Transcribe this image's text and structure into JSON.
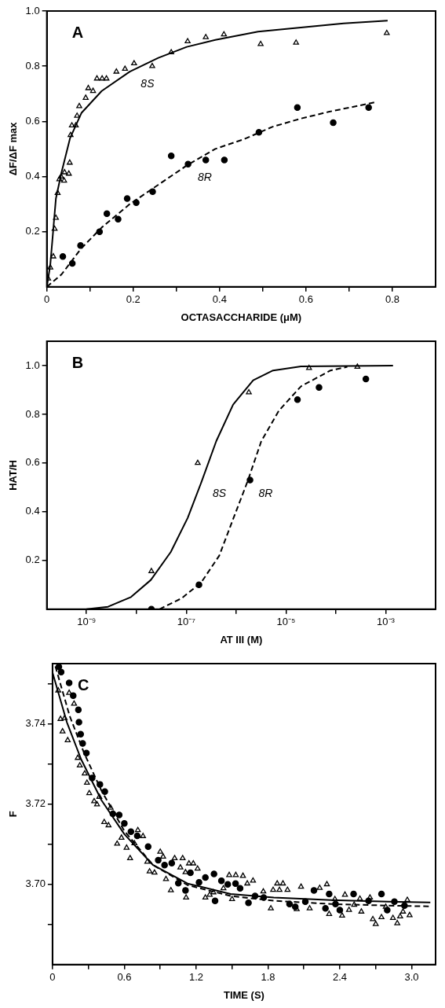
{
  "chart_data": [
    {
      "type": "scatter",
      "xlabel": "OCTASACCHARIDE (μM)",
      "ylabel": "ΔF/ΔF max",
      "xlim": [
        0,
        0.9
      ],
      "ylim": [
        0,
        1.0
      ],
      "xticks": [
        0,
        {
          "value": 0.1,
          "label": null
        },
        0.2,
        {
          "value": 0.3,
          "label": null
        },
        0.4,
        {
          "value": 0.5,
          "label": null
        },
        0.6,
        {
          "value": 0.7,
          "label": null
        },
        0.8
      ],
      "yticks": [
        0.2,
        0.4,
        0.6,
        0.8,
        {
          "value": 1.0,
          "label": "1.0"
        }
      ],
      "grid": false,
      "annotations": [
        "A"
      ],
      "series": [
        {
          "type": "scatter",
          "marker": "triangle",
          "color": "#000000",
          "x": [
            0.003,
            0.008,
            0.015,
            0.018,
            0.021,
            0.025,
            0.029,
            0.033,
            0.04,
            0.041,
            0.051,
            0.053,
            0.055,
            0.058,
            0.067,
            0.07,
            0.075,
            0.09,
            0.096,
            0.107,
            0.116,
            0.128,
            0.138,
            0.161,
            0.181,
            0.202,
            0.244,
            0.288,
            0.326,
            0.368,
            0.41,
            0.495,
            0.577,
            0.787
          ],
          "values": [
            0.03,
            0.07,
            0.11,
            0.21,
            0.25,
            0.34,
            0.39,
            0.4,
            0.385,
            0.415,
            0.41,
            0.45,
            0.55,
            0.585,
            0.585,
            0.62,
            0.655,
            0.685,
            0.72,
            0.71,
            0.755,
            0.755,
            0.755,
            0.78,
            0.79,
            0.81,
            0.8,
            0.85,
            0.89,
            0.905,
            0.915,
            0.88,
            0.885,
            0.92
          ]
        },
        {
          "type": "scatter",
          "marker": "circle",
          "color": "#000000",
          "x": [
            0.037,
            0.059,
            0.078,
            0.122,
            0.139,
            0.165,
            0.186,
            0.207,
            0.245,
            0.288,
            0.327,
            0.368,
            0.411,
            0.491,
            0.58,
            0.663,
            0.745
          ],
          "values": [
            0.11,
            0.085,
            0.15,
            0.2,
            0.265,
            0.245,
            0.32,
            0.305,
            0.345,
            0.475,
            0.445,
            0.46,
            0.46,
            0.56,
            0.65,
            0.595,
            0.65
          ]
        },
        {
          "type": "line",
          "name": "8S",
          "marker": "none",
          "line_style": "solid",
          "color": "#000000",
          "x": [
            0,
            0.008,
            0.021,
            0.034,
            0.054,
            0.08,
            0.127,
            0.192,
            0.258,
            0.324,
            0.39,
            0.489,
            0.588,
            0.687,
            0.789
          ],
          "values": [
            0,
            0.08,
            0.32,
            0.415,
            0.54,
            0.63,
            0.71,
            0.78,
            0.83,
            0.87,
            0.895,
            0.925,
            0.94,
            0.955,
            0.965
          ]
        },
        {
          "type": "line",
          "name": "8R",
          "marker": "none",
          "line_style": "dashed",
          "color": "#000000",
          "x": [
            0,
            0.034,
            0.08,
            0.127,
            0.192,
            0.258,
            0.324,
            0.39,
            0.456,
            0.522,
            0.588,
            0.654,
            0.763
          ],
          "values": [
            0,
            0.045,
            0.14,
            0.215,
            0.3,
            0.37,
            0.44,
            0.5,
            0.535,
            0.58,
            0.61,
            0.635,
            0.67
          ]
        }
      ]
    },
    {
      "type": "scatter",
      "xlabel": "AT III (M)",
      "ylabel": "HAT/H",
      "log": "x",
      "xlim": [
        1.6e-10,
        0.01
      ],
      "ylim": [
        0,
        1.1
      ],
      "xticks": [
        {
          "value": 1e-09,
          "label": "10⁻⁹"
        },
        {
          "value": 1e-08,
          "label": null
        },
        {
          "value": 1e-07,
          "label": "10⁻⁷"
        },
        {
          "value": 1e-06,
          "label": null
        },
        {
          "value": 1e-05,
          "label": "10⁻⁵"
        },
        {
          "value": 0.0001,
          "label": null
        },
        {
          "value": 0.001,
          "label": "10⁻³"
        }
      ],
      "yticks": [
        0.2,
        0.4,
        0.6,
        0.8,
        {
          "value": 1.0,
          "label": "1.0"
        }
      ],
      "grid": false,
      "annotations": [
        "B"
      ],
      "series": [
        {
          "type": "scatter",
          "marker": "triangle",
          "color": "#000000",
          "x": [
            2e-08,
            1.7e-07,
            1.8e-06,
            2.9e-05,
            0.00027
          ],
          "values": [
            0.156,
            0.6,
            0.89,
            0.99,
            0.995
          ]
        },
        {
          "type": "scatter",
          "marker": "circle",
          "color": "#000000",
          "x": [
            2e-08,
            1.8e-07,
            1.9e-06,
            1.7e-05,
            4.6e-05,
            0.0004
          ],
          "values": [
            0.0,
            0.1,
            0.53,
            0.86,
            0.91,
            0.945
          ]
        },
        {
          "type": "line",
          "name": "8S",
          "marker": "none",
          "line_style": "solid",
          "color": "#000000",
          "x": [
            1e-09,
            2.7e-09,
            7.8e-09,
            1.95e-08,
            4.9e-08,
            1.07e-07,
            2.04e-07,
            4e-07,
            8.7e-07,
            2.2e-06,
            5.5e-06,
            2e-05,
            0.0014
          ],
          "values": [
            0,
            0.01,
            0.05,
            0.12,
            0.235,
            0.375,
            0.525,
            0.69,
            0.84,
            0.94,
            0.98,
            0.997,
            1.0
          ]
        },
        {
          "type": "line",
          "name": "8R",
          "marker": "none",
          "line_style": "dashed",
          "color": "#000000",
          "x": [
            2.9e-08,
            8.1e-08,
            2e-07,
            4.6e-07,
            8.7e-07,
            1.7e-06,
            3.2e-06,
            7.2e-06,
            2e-05,
            7.8e-05,
            0.00017
          ],
          "values": [
            0,
            0.045,
            0.11,
            0.22,
            0.37,
            0.525,
            0.69,
            0.815,
            0.915,
            0.98,
            0.995
          ]
        }
      ]
    },
    {
      "type": "scatter",
      "xlabel": "TIME (S)",
      "ylabel": "F",
      "xlim": [
        0,
        3.2
      ],
      "ylim": [
        3.68,
        3.755
      ],
      "xticks": [
        0,
        {
          "value": 0.3,
          "label": null
        },
        0.6,
        {
          "value": 0.9,
          "label": null
        },
        1.2,
        {
          "value": 1.5,
          "label": null
        },
        1.8,
        {
          "value": 2.1,
          "label": null
        },
        2.4,
        {
          "value": 2.7,
          "label": null
        },
        {
          "value": 3.0,
          "label": "3.0"
        }
      ],
      "yticks": [
        {
          "value": 3.69,
          "label": null
        },
        {
          "value": 3.7,
          "label": "3.70"
        },
        {
          "value": 3.71,
          "label": null
        },
        3.72,
        {
          "value": 3.73,
          "label": null
        },
        3.74,
        {
          "value": 3.75,
          "label": null
        }
      ],
      "grid": false,
      "annotations": [
        "C"
      ],
      "series": [
        {
          "type": "scatter",
          "marker": "triangle",
          "color": "#000000",
          "x": [
            0.048,
            0.067,
            0.084,
            0.127,
            0.101,
            0.139,
            0.18,
            0.211,
            0.228,
            0.269,
            0.288,
            0.307,
            0.348,
            0.372,
            0.391,
            0.432,
            0.468,
            0.485,
            0.54,
            0.576,
            0.619,
            0.648,
            0.684,
            0.713,
            0.756,
            0.792,
            0.811,
            0.852,
            0.9,
            0.924,
            0.948,
            0.989,
            1.02,
            1.068,
            1.087,
            1.111,
            1.116,
            1.14,
            1.176,
            1.212,
            1.277,
            1.313,
            1.344,
            1.428,
            1.476,
            1.5,
            1.531,
            1.591,
            1.627,
            1.675,
            1.761,
            1.824,
            1.843,
            1.877,
            1.896,
            1.925,
            1.963,
            2.04,
            2.076,
            2.148,
            2.232,
            2.292,
            2.311,
            2.359,
            2.419,
            2.443,
            2.477,
            2.52,
            2.568,
            2.58,
            2.652,
            2.676,
            2.7,
            2.748,
            2.784,
            2.844,
            2.88,
            2.904,
            2.928,
            2.964,
            2.983
          ],
          "values": [
            3.7483,
            3.7412,
            3.7381,
            3.7359,
            3.7414,
            3.7477,
            3.745,
            3.7315,
            3.7296,
            3.7276,
            3.7253,
            3.7227,
            3.7207,
            3.7199,
            3.7218,
            3.7155,
            3.7147,
            3.7191,
            3.7101,
            3.7116,
            3.7091,
            3.7065,
            3.7102,
            3.7135,
            3.712,
            3.7056,
            3.7032,
            3.7029,
            3.7081,
            3.7069,
            3.7013,
            3.6985,
            3.7065,
            3.7042,
            3.7065,
            3.703,
            3.6967,
            3.7052,
            3.7052,
            3.7039,
            3.6967,
            3.6974,
            3.698,
            3.699,
            3.7023,
            3.6963,
            3.7023,
            3.7021,
            3.7002,
            3.7009,
            3.6982,
            3.694,
            3.6986,
            3.7002,
            3.6986,
            3.7002,
            3.6986,
            3.6938,
            3.6994,
            3.694,
            3.6991,
            3.7,
            3.6926,
            3.6963,
            3.6922,
            3.6974,
            3.6936,
            3.6949,
            3.6964,
            3.6932,
            3.6967,
            3.6913,
            3.6901,
            3.6918,
            3.6944,
            3.6916,
            3.6903,
            3.692,
            3.6932,
            3.6961,
            3.6923
          ]
        },
        {
          "type": "scatter",
          "marker": "circle",
          "color": "#000000",
          "x": [
            0.053,
            0.072,
            0.139,
            0.173,
            0.216,
            0.221,
            0.235,
            0.252,
            0.283,
            0.331,
            0.396,
            0.437,
            0.504,
            0.557,
            0.6,
            0.655,
            0.708,
            0.799,
            0.883,
            0.936,
            0.996,
            1.051,
            1.111,
            1.152,
            1.224,
            1.277,
            1.349,
            1.358,
            1.411,
            1.464,
            1.529,
            1.567,
            1.637,
            1.692,
            1.764,
            1.98,
            2.028,
            2.112,
            2.184,
            2.28,
            2.311,
            2.364,
            2.4,
            2.515,
            2.64,
            2.748,
            2.796,
            2.856,
            2.94
          ],
          "values": [
            3.7542,
            3.7529,
            3.7502,
            3.747,
            3.7435,
            3.7404,
            3.7374,
            3.7351,
            3.7327,
            3.7265,
            3.7249,
            3.7231,
            3.7176,
            3.7173,
            3.7152,
            3.7131,
            3.7121,
            3.7094,
            3.706,
            3.7048,
            3.7053,
            3.7003,
            3.6985,
            3.7029,
            3.7005,
            3.7017,
            3.7026,
            3.6959,
            3.7009,
            3.7,
            3.7002,
            3.699,
            3.6954,
            3.6971,
            3.6967,
            3.6951,
            3.6944,
            3.6957,
            3.6985,
            3.694,
            3.6976,
            3.6951,
            3.6936,
            3.6976,
            3.6959,
            3.6976,
            3.6936,
            3.6957,
            3.6947
          ]
        },
        {
          "type": "line",
          "marker": "none",
          "line_style": "solid",
          "color": "#000000",
          "x": [
            0,
            0.12,
            0.24,
            0.408,
            0.6,
            0.84,
            1.128,
            1.488,
            1.848,
            2.328,
            2.808,
            3.156
          ],
          "values": [
            3.7528,
            3.7404,
            3.7311,
            3.721,
            3.7125,
            3.7048,
            3.7002,
            3.6976,
            3.6967,
            3.6961,
            3.6957,
            3.6955
          ]
        },
        {
          "type": "line",
          "marker": "none",
          "line_style": "dashed",
          "color": "#000000",
          "x": [
            0.024,
            0.144,
            0.264,
            0.408,
            0.6,
            0.84,
            1.128,
            1.488,
            1.848,
            2.328,
            2.808,
            3.156
          ],
          "values": [
            3.7543,
            3.7419,
            3.7327,
            3.7234,
            3.7133,
            3.7048,
            3.6998,
            3.6971,
            3.6959,
            3.6951,
            3.6947,
            3.6945
          ]
        }
      ]
    }
  ]
}
